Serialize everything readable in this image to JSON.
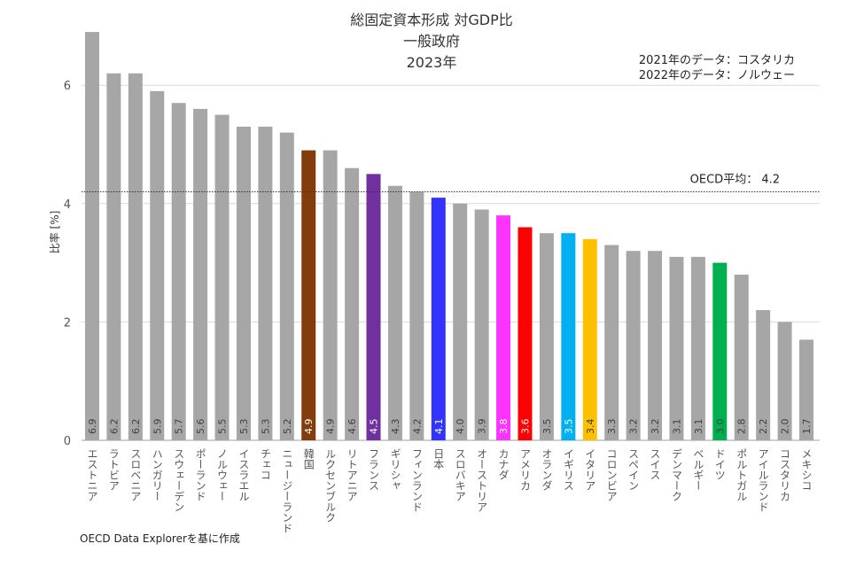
{
  "chart_data": {
    "type": "bar",
    "title": [
      "総固定資本形成 対GDP比",
      "一般政府",
      "2023年"
    ],
    "notes": [
      "2021年のデータ：コスタリカ",
      "2022年のデータ：ノルウェー"
    ],
    "ylabel": "比率 [%]",
    "xlabel": "",
    "ylim": [
      0,
      7
    ],
    "yticks": [
      0,
      2,
      4,
      6
    ],
    "grid": true,
    "reference_line": {
      "label": "OECD平均： 4.2",
      "value": 4.2
    },
    "source": "OECD Data Explorerを基に作成",
    "categories": [
      "エストニア",
      "ラトビア",
      "スロベニア",
      "ハンガリー",
      "スウェーデン",
      "ポーランド",
      "ノルウェー",
      "イスラエル",
      "チェコ",
      "ニュージーランド",
      "韓国",
      "ルクセンブルク",
      "リトアニア",
      "フランス",
      "ギリシャ",
      "フィンランド",
      "日本",
      "スロバキア",
      "オーストリア",
      "カナダ",
      "アメリカ",
      "オランダ",
      "イギリス",
      "イタリア",
      "コロンビア",
      "スペイン",
      "スイス",
      "デンマーク",
      "ベルギー",
      "ドイツ",
      "ポルトガル",
      "アイルランド",
      "コスタリカ",
      "メキシコ"
    ],
    "values": [
      6.9,
      6.2,
      6.2,
      5.9,
      5.7,
      5.6,
      5.5,
      5.3,
      5.3,
      5.2,
      4.9,
      4.9,
      4.6,
      4.5,
      4.3,
      4.2,
      4.1,
      4.0,
      3.9,
      3.8,
      3.6,
      3.5,
      3.5,
      3.4,
      3.3,
      3.2,
      3.2,
      3.1,
      3.1,
      3.0,
      2.8,
      2.2,
      2.0,
      1.7
    ],
    "default_color": "#a6a6a6",
    "highlight_colors": {
      "韓国": "#843c0c",
      "フランス": "#7030a0",
      "日本": "#3333ff",
      "カナダ": "#ff33ff",
      "アメリカ": "#ff0000",
      "イギリス": "#00b0f0",
      "イタリア": "#ffc000",
      "ドイツ": "#00b050"
    }
  }
}
